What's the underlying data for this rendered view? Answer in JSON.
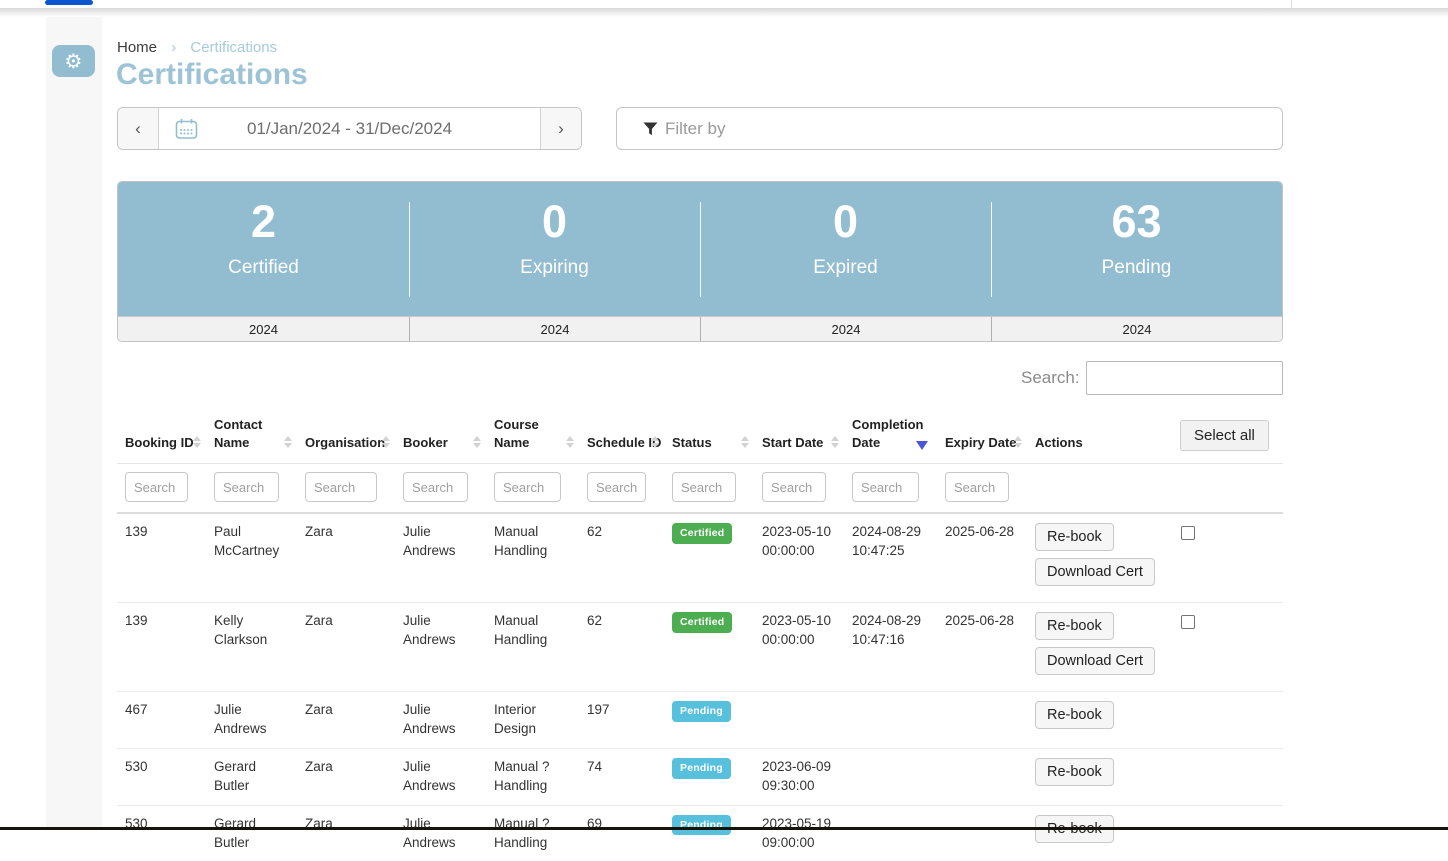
{
  "topbar": {
    "active_indicator_color": "#0b57d0"
  },
  "sidebar": {
    "gear_icon": "gear"
  },
  "breadcrumb": {
    "home": "Home",
    "separator": "›",
    "current": "Certifications"
  },
  "page": {
    "title": "Certifications"
  },
  "date_picker": {
    "prev_label": "‹",
    "next_label": "›",
    "calendar_icon": "calendar",
    "range": "01/Jan/2024 - 31/Dec/2024"
  },
  "filter": {
    "funnel_icon": "funnel",
    "placeholder": "Filter by"
  },
  "stats": {
    "items": [
      {
        "value": "2",
        "label": "Certified",
        "year": "2024"
      },
      {
        "value": "0",
        "label": "Expiring",
        "year": "2024"
      },
      {
        "value": "0",
        "label": "Expired",
        "year": "2024"
      },
      {
        "value": "63",
        "label": "Pending",
        "year": "2024"
      }
    ]
  },
  "search": {
    "label": "Search:",
    "value": ""
  },
  "table": {
    "select_all_label": "Select all",
    "column_search_placeholder": "Search",
    "columns": [
      {
        "label": "Booking ID",
        "sort": "both"
      },
      {
        "label": "Contact Name",
        "sort": "both"
      },
      {
        "label": "Organisation",
        "sort": "both"
      },
      {
        "label": "Booker",
        "sort": "both"
      },
      {
        "label": "Course Name",
        "sort": "both"
      },
      {
        "label": "Schedule ID",
        "sort": "both"
      },
      {
        "label": "Status",
        "sort": "both"
      },
      {
        "label": "Start Date",
        "sort": "both"
      },
      {
        "label": "Completion Date",
        "sort": "desc"
      },
      {
        "label": "Expiry Date",
        "sort": "both"
      },
      {
        "label": "Actions",
        "sort": "none"
      }
    ],
    "rows": [
      {
        "booking_id": "139",
        "contact_name": "Paul McCartney",
        "organisation": "Zara",
        "booker": "Julie Andrews",
        "course_name": "Manual Handling",
        "schedule_id": "62",
        "status": "Certified",
        "start_date": "2023-05-10 00:00:00",
        "completion_date": "2024-08-29 10:47:25",
        "expiry_date": "2025-06-28",
        "actions": [
          "Re-book",
          "Download Cert"
        ],
        "checkbox": true
      },
      {
        "booking_id": "139",
        "contact_name": "Kelly Clarkson",
        "organisation": "Zara",
        "booker": "Julie Andrews",
        "course_name": "Manual Handling",
        "schedule_id": "62",
        "status": "Certified",
        "start_date": "2023-05-10 00:00:00",
        "completion_date": "2024-08-29 10:47:16",
        "expiry_date": "2025-06-28",
        "actions": [
          "Re-book",
          "Download Cert"
        ],
        "checkbox": true
      },
      {
        "booking_id": "467",
        "contact_name": "Julie Andrews",
        "organisation": "Zara",
        "booker": "Julie Andrews",
        "course_name": "Interior Design",
        "schedule_id": "197",
        "status": "Pending",
        "start_date": "",
        "completion_date": "",
        "expiry_date": "",
        "actions": [
          "Re-book"
        ],
        "checkbox": false
      },
      {
        "booking_id": "530",
        "contact_name": "Gerard Butler",
        "organisation": "Zara",
        "booker": "Julie Andrews",
        "course_name": "Manual ? Handling",
        "schedule_id": "74",
        "status": "Pending",
        "start_date": "2023-06-09 09:30:00",
        "completion_date": "",
        "expiry_date": "",
        "actions": [
          "Re-book"
        ],
        "checkbox": false
      },
      {
        "booking_id": "530",
        "contact_name": "Gerard Butler",
        "organisation": "Zara",
        "booker": "Julie Andrews",
        "course_name": "Manual ? Handling",
        "schedule_id": "69",
        "status": "Pending",
        "start_date": "2023-05-19 09:00:00",
        "completion_date": "",
        "expiry_date": "",
        "actions": [
          "Re-book"
        ],
        "checkbox": false
      }
    ]
  },
  "colors": {
    "accent_blue": "#92bdd0",
    "badge_certified": "#4cae50",
    "badge_pending": "#56c0dd",
    "sort_active": "#4a55d8",
    "topbar_blue": "#0b57d0"
  }
}
